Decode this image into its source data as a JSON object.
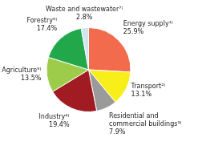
{
  "chart_data": {
    "type": "pie",
    "categories": [
      "Energy supply¹⁾",
      "Transport²⁾",
      "Residential and commercial buildings³⁾",
      "Industry⁴⁾",
      "Agriculture⁵⁾",
      "Forestry⁶⁾",
      "Waste and wastewater⁷⁾"
    ],
    "values": [
      25.9,
      13.1,
      7.9,
      19.4,
      13.5,
      17.4,
      2.8
    ],
    "value_labels": [
      "25.9%",
      "13.1%",
      "7.9%",
      "19.4%",
      "13.5%",
      "17.4%",
      "2.8%"
    ],
    "colors": [
      "#f26b4d",
      "#f7ee1a",
      "#9a9a9a",
      "#a01c22",
      "#9ccc4a",
      "#22a84a",
      "#cfe6ef"
    ],
    "data_labels": true,
    "legend": false
  }
}
